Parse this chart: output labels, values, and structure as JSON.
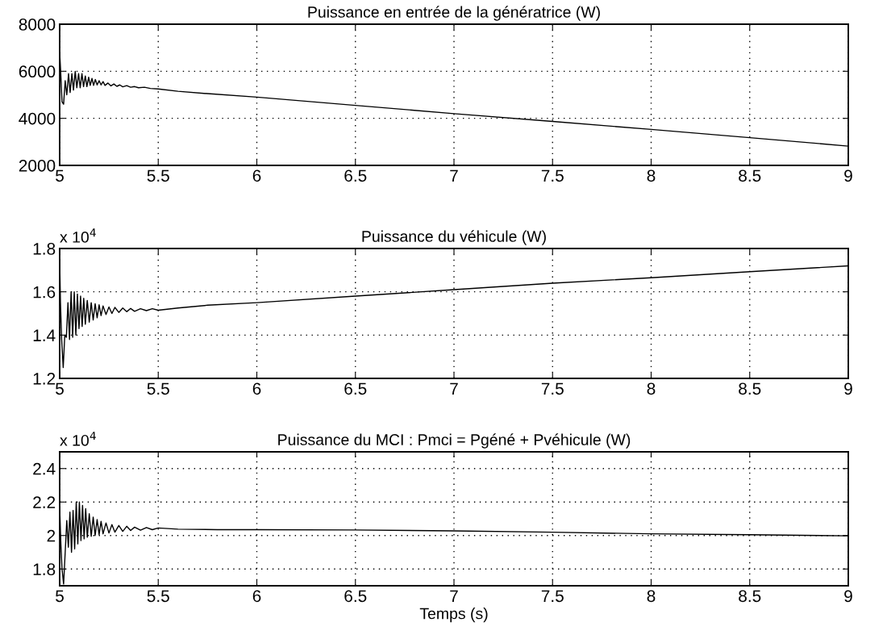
{
  "chart_data": [
    {
      "type": "line",
      "title": "Puissance en entrée de la génératrice (W)",
      "xlim": [
        5,
        9
      ],
      "xticks": [
        5,
        5.5,
        6,
        6.5,
        7,
        7.5,
        8,
        8.5,
        9
      ],
      "ylim": [
        2000,
        8000
      ],
      "yticks": [
        2000,
        4000,
        6000,
        8000
      ],
      "grid": true,
      "series": [
        {
          "color": "#000000",
          "x": [
            5.0,
            5.005,
            5.012,
            5.02,
            5.028,
            5.036,
            5.045,
            5.053,
            5.062,
            5.07,
            5.079,
            5.087,
            5.096,
            5.104,
            5.113,
            5.121,
            5.13,
            5.138,
            5.147,
            5.155,
            5.164,
            5.172,
            5.181,
            5.19,
            5.2,
            5.21,
            5.22,
            5.23,
            5.245,
            5.26,
            5.275,
            5.29,
            5.305,
            5.32,
            5.34,
            5.36,
            5.38,
            5.4,
            5.43,
            5.46,
            5.5,
            5.6,
            5.75,
            6,
            6.5,
            7,
            7.5,
            8,
            8.5,
            9
          ],
          "values": [
            6800,
            6000,
            4700,
            4600,
            5600,
            5000,
            5900,
            5100,
            5900,
            5200,
            6000,
            5300,
            5900,
            5300,
            5900,
            5350,
            5800,
            5350,
            5750,
            5400,
            5700,
            5400,
            5650,
            5420,
            5600,
            5420,
            5560,
            5400,
            5500,
            5380,
            5460,
            5360,
            5420,
            5340,
            5390,
            5320,
            5350,
            5300,
            5320,
            5270,
            5250,
            5150,
            5050,
            4900,
            4550,
            4200,
            3870,
            3530,
            3180,
            2820
          ]
        }
      ]
    },
    {
      "type": "line",
      "title": "Puissance du véhicule (W)",
      "annotations": [
        "x 10$^{4}$"
      ],
      "xlim": [
        5,
        9
      ],
      "xticks": [
        5,
        5.5,
        6,
        6.5,
        7,
        7.5,
        8,
        8.5,
        9
      ],
      "ylim": [
        1.2,
        1.8
      ],
      "yticks": [
        1.2,
        1.4,
        1.6,
        1.8
      ],
      "grid": true,
      "series": [
        {
          "color": "#000000",
          "x": [
            5.0,
            5.004,
            5.01,
            5.018,
            5.026,
            5.034,
            5.042,
            5.05,
            5.058,
            5.066,
            5.074,
            5.082,
            5.09,
            5.098,
            5.106,
            5.114,
            5.122,
            5.13,
            5.14,
            5.15,
            5.16,
            5.17,
            5.18,
            5.19,
            5.2,
            5.21,
            5.22,
            5.235,
            5.25,
            5.265,
            5.28,
            5.3,
            5.32,
            5.34,
            5.36,
            5.38,
            5.41,
            5.44,
            5.47,
            5.5,
            5.6,
            5.75,
            6,
            6.5,
            7,
            7.5,
            8,
            8.5,
            9
          ],
          "values": [
            1.75,
            1.55,
            1.38,
            1.25,
            1.4,
            1.39,
            1.55,
            1.38,
            1.6,
            1.39,
            1.6,
            1.4,
            1.59,
            1.43,
            1.58,
            1.44,
            1.57,
            1.45,
            1.56,
            1.46,
            1.55,
            1.47,
            1.545,
            1.48,
            1.54,
            1.49,
            1.535,
            1.495,
            1.53,
            1.5,
            1.528,
            1.505,
            1.525,
            1.508,
            1.523,
            1.51,
            1.522,
            1.513,
            1.522,
            1.515,
            1.525,
            1.538,
            1.55,
            1.58,
            1.61,
            1.64,
            1.665,
            1.693,
            1.72
          ]
        }
      ]
    },
    {
      "type": "line",
      "title": "Puissance du MCI : Pmci = Pgéné + Pvéhicule (W)",
      "xlabel": "Temps (s)",
      "annotations": [
        "x 10$^{4}$"
      ],
      "xlim": [
        5,
        9
      ],
      "xticks": [
        5,
        5.5,
        6,
        6.5,
        7,
        7.5,
        8,
        8.5,
        9
      ],
      "ylim": [
        1.7,
        2.5
      ],
      "yticks": [
        1.8,
        2,
        2.2,
        2.4
      ],
      "grid": true,
      "series": [
        {
          "color": "#000000",
          "x": [
            5.0,
            5.006,
            5.012,
            5.02,
            5.028,
            5.036,
            5.044,
            5.052,
            5.06,
            5.068,
            5.076,
            5.084,
            5.092,
            5.1,
            5.108,
            5.116,
            5.124,
            5.132,
            5.14,
            5.15,
            5.16,
            5.17,
            5.18,
            5.19,
            5.2,
            5.21,
            5.22,
            5.235,
            5.25,
            5.265,
            5.28,
            5.3,
            5.32,
            5.34,
            5.36,
            5.38,
            5.41,
            5.44,
            5.47,
            5.5,
            5.6,
            5.8,
            6,
            6.5,
            7,
            7.5,
            8,
            8.5,
            9
          ],
          "values": [
            2.17,
            1.95,
            1.8,
            1.71,
            1.9,
            2.09,
            1.93,
            2.14,
            1.9,
            2.15,
            1.92,
            2.2,
            1.95,
            2.2,
            1.97,
            2.18,
            1.98,
            2.16,
            1.99,
            2.13,
            1.995,
            2.11,
            2.0,
            2.095,
            2.005,
            2.085,
            2.01,
            2.075,
            2.015,
            2.065,
            2.02,
            2.06,
            2.025,
            2.055,
            2.03,
            2.05,
            2.032,
            2.048,
            2.035,
            2.045,
            2.038,
            2.035,
            2.035,
            2.033,
            2.028,
            2.02,
            2.01,
            2.005,
            1.998
          ]
        }
      ]
    }
  ]
}
